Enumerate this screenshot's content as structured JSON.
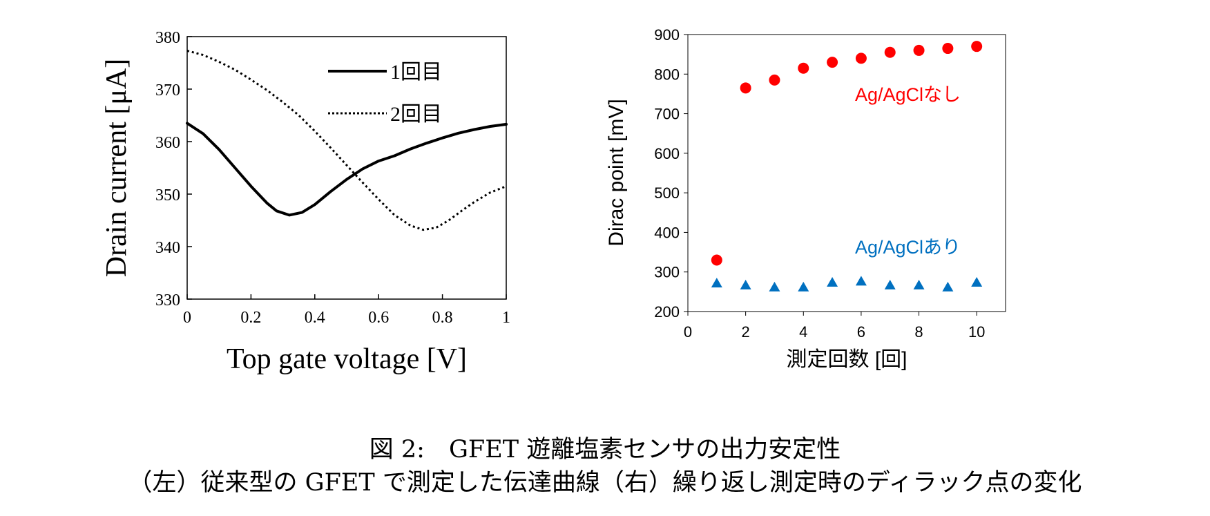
{
  "caption": {
    "line1": "図 2:　GFET 遊離塩素センサの出力安定性",
    "line2": "（左）従来型の GFET で測定した伝達曲線（右）繰り返し測定時のディラック点の変化"
  },
  "chart_data": [
    {
      "type": "line",
      "xlabel": "Top gate voltage [V]",
      "ylabel": "Drain current [μA]",
      "xlim": [
        0,
        1
      ],
      "ylim": [
        330,
        380
      ],
      "xticks": [
        0,
        0.2,
        0.4,
        0.6,
        0.8,
        1
      ],
      "xtick_labels": [
        "0",
        "0.2",
        "0.4",
        "0.6",
        "0.8",
        "1"
      ],
      "yticks": [
        330,
        340,
        350,
        360,
        370,
        380
      ],
      "ytick_labels": [
        "330",
        "340",
        "350",
        "360",
        "370",
        "380"
      ],
      "grid": false,
      "legend": "top-right",
      "series": [
        {
          "name": "1回目",
          "style": "solid",
          "color": "#000000",
          "x": [
            0,
            0.05,
            0.1,
            0.15,
            0.2,
            0.25,
            0.28,
            0.32,
            0.36,
            0.4,
            0.45,
            0.5,
            0.55,
            0.6,
            0.65,
            0.7,
            0.75,
            0.8,
            0.85,
            0.9,
            0.95,
            1.0
          ],
          "y": [
            363.5,
            361.5,
            358.5,
            355.0,
            351.5,
            348.3,
            346.8,
            346.0,
            346.5,
            348.0,
            350.5,
            352.8,
            354.8,
            356.3,
            357.3,
            358.6,
            359.7,
            360.7,
            361.6,
            362.3,
            362.9,
            363.3
          ]
        },
        {
          "name": "2回目",
          "style": "dotted",
          "color": "#000000",
          "x": [
            0,
            0.05,
            0.1,
            0.15,
            0.2,
            0.25,
            0.3,
            0.35,
            0.4,
            0.45,
            0.5,
            0.55,
            0.6,
            0.65,
            0.7,
            0.74,
            0.78,
            0.82,
            0.86,
            0.9,
            0.95,
            1.0
          ],
          "y": [
            377.3,
            376.5,
            375.2,
            373.7,
            371.8,
            369.8,
            367.5,
            365.0,
            362.0,
            358.8,
            355.5,
            352.2,
            349.0,
            346.0,
            344.0,
            343.2,
            343.6,
            345.0,
            346.8,
            348.5,
            350.3,
            351.5
          ]
        }
      ]
    },
    {
      "type": "scatter",
      "xlabel": "測定回数 [回]",
      "ylabel": "Dirac point [mV]",
      "xlim": [
        0,
        11
      ],
      "ylim": [
        200,
        900
      ],
      "xticks": [
        0,
        2,
        4,
        6,
        8,
        10
      ],
      "xtick_labels": [
        "0",
        "2",
        "4",
        "6",
        "8",
        "10"
      ],
      "yticks": [
        200,
        300,
        400,
        500,
        600,
        700,
        800,
        900
      ],
      "ytick_labels": [
        "200",
        "300",
        "400",
        "500",
        "600",
        "700",
        "800",
        "900"
      ],
      "grid": false,
      "series": [
        {
          "name": "Ag/AgClなし",
          "marker": "circle",
          "color": "#ff0000",
          "x": [
            1,
            2,
            3,
            4,
            5,
            6,
            7,
            8,
            9,
            10
          ],
          "y": [
            330,
            765,
            785,
            815,
            830,
            840,
            855,
            860,
            865,
            870
          ]
        },
        {
          "name": "Ag/AgClあり",
          "marker": "triangle",
          "color": "#0070c0",
          "x": [
            1,
            2,
            3,
            4,
            5,
            6,
            7,
            8,
            9,
            10
          ],
          "y": [
            273,
            268,
            263,
            263,
            275,
            278,
            268,
            268,
            263,
            275
          ]
        }
      ]
    }
  ]
}
